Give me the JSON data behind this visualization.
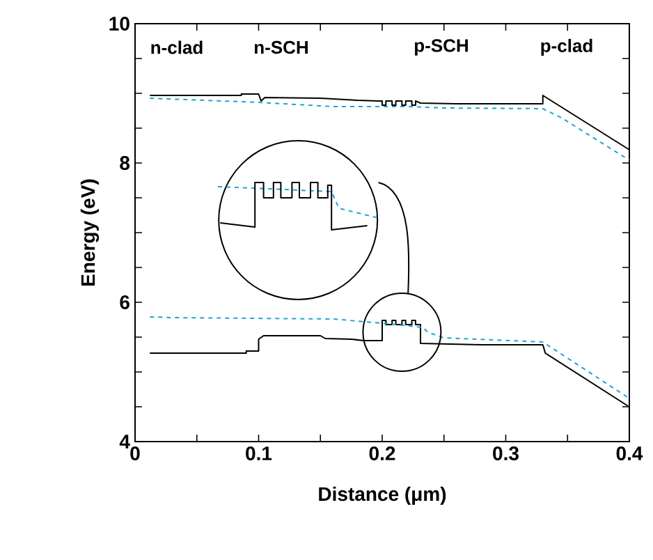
{
  "chart_data": {
    "type": "line",
    "xlabel": "Distance (μm)",
    "ylabel": "Energy (eV)",
    "xlim": [
      0,
      0.4
    ],
    "ylim": [
      4,
      10
    ],
    "xticks": [
      0,
      {
        "value": 0.05,
        "label": null
      },
      0.1,
      {
        "value": 0.15,
        "label": null
      },
      0.2,
      {
        "value": 0.25,
        "label": null
      },
      0.3,
      {
        "value": 0.35,
        "label": null
      },
      0.4
    ],
    "yticks": [
      4,
      {
        "value": 4.5,
        "label": null
      },
      {
        "value": 5,
        "label": null
      },
      {
        "value": 5.5,
        "label": null
      },
      6,
      {
        "value": 6.5,
        "label": null
      },
      {
        "value": 7,
        "label": null
      },
      {
        "value": 7.5,
        "label": null
      },
      8,
      {
        "value": 8.5,
        "label": null
      },
      {
        "value": 9,
        "label": null
      },
      {
        "value": 9.5,
        "label": null
      },
      10
    ],
    "grid": false,
    "marker": "none",
    "annotations": [
      "n-clad",
      "n-SCH",
      "p-SCH",
      "p-clad"
    ],
    "series": [
      {
        "color": "#000000",
        "line_style": "solid",
        "x": [
          0.012,
          0.086,
          0.086,
          0.1,
          0.102,
          0.105,
          0.15,
          0.18,
          0.197,
          0.2,
          0.2,
          0.203,
          0.203,
          0.208,
          0.208,
          0.211,
          0.211,
          0.216,
          0.216,
          0.219,
          0.219,
          0.224,
          0.224,
          0.227,
          0.227,
          0.231,
          0.26,
          0.33,
          0.33,
          0.4
        ],
        "values": [
          8.97,
          8.97,
          8.99,
          8.99,
          8.89,
          8.94,
          8.93,
          8.9,
          8.89,
          8.89,
          8.83,
          8.83,
          8.89,
          8.89,
          8.83,
          8.83,
          8.89,
          8.89,
          8.83,
          8.83,
          8.89,
          8.89,
          8.83,
          8.83,
          8.89,
          8.86,
          8.85,
          8.85,
          8.97,
          8.19
        ]
      },
      {
        "color": "#1fa3d6",
        "line_style": "dashed",
        "x": [
          0.012,
          0.1,
          0.16,
          0.22,
          0.25,
          0.33,
          0.345,
          0.4
        ],
        "values": [
          8.93,
          8.87,
          8.81,
          8.81,
          8.79,
          8.78,
          8.65,
          8.04
        ]
      },
      {
        "color": "#000000",
        "line_style": "solid",
        "x": [
          0.012,
          0.09,
          0.09,
          0.1,
          0.1,
          0.104,
          0.15,
          0.154,
          0.175,
          0.185,
          0.2,
          0.2,
          0.203,
          0.203,
          0.208,
          0.208,
          0.211,
          0.211,
          0.216,
          0.216,
          0.219,
          0.219,
          0.224,
          0.224,
          0.227,
          0.227,
          0.231,
          0.231,
          0.28,
          0.33,
          0.332,
          0.399
        ],
        "values": [
          5.27,
          5.27,
          5.3,
          5.3,
          5.47,
          5.52,
          5.52,
          5.48,
          5.47,
          5.45,
          5.45,
          5.74,
          5.74,
          5.68,
          5.68,
          5.74,
          5.74,
          5.68,
          5.68,
          5.74,
          5.74,
          5.68,
          5.68,
          5.74,
          5.74,
          5.68,
          5.68,
          5.41,
          5.39,
          5.39,
          5.27,
          4.51
        ]
      },
      {
        "color": "#1fa3d6",
        "line_style": "dashed",
        "x": [
          0.012,
          0.03,
          0.16,
          0.2,
          0.233,
          0.237,
          0.25,
          0.33,
          0.4
        ],
        "values": [
          5.79,
          5.78,
          5.76,
          5.7,
          5.64,
          5.57,
          5.49,
          5.43,
          4.62
        ]
      }
    ]
  }
}
